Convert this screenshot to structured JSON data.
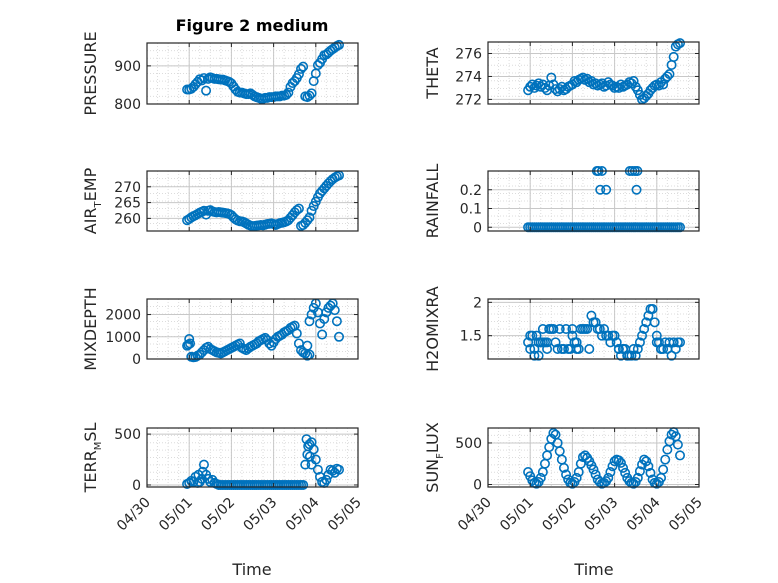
{
  "figure": {
    "title": "Figure 2 medium",
    "xlabel": "Time",
    "x_ticks": [
      "04/30",
      "05/01",
      "05/02",
      "05/03",
      "05/04",
      "05/05"
    ]
  },
  "colors": {
    "marker": "#0072BD",
    "grid": "#dcdcdc",
    "axis": "#262626"
  },
  "chart_data": [
    {
      "type": "scatter",
      "ylabel": "PRESSURE",
      "ylim": [
        800,
        960
      ],
      "yticks": [
        "800",
        "900"
      ],
      "x": [
        0.95,
        1.0,
        1.05,
        1.1,
        1.15,
        1.2,
        1.25,
        1.3,
        1.35,
        1.4,
        1.45,
        1.5,
        1.55,
        1.6,
        1.65,
        1.7,
        1.75,
        1.8,
        1.85,
        1.9,
        1.95,
        2.0,
        2.05,
        2.1,
        2.15,
        2.2,
        2.25,
        2.3,
        2.35,
        2.4,
        2.45,
        2.5,
        2.55,
        2.6,
        2.65,
        2.7,
        2.75,
        2.8,
        2.85,
        2.9,
        2.95,
        3.0,
        3.05,
        3.1,
        3.15,
        3.2,
        3.25,
        3.3,
        3.35,
        3.4,
        3.45,
        3.5,
        3.55,
        3.6,
        3.65,
        3.7,
        3.75,
        3.8,
        3.85,
        3.9,
        3.95,
        4.0,
        4.05,
        4.1,
        4.15,
        4.2,
        4.25,
        4.3,
        4.35,
        4.4,
        4.45,
        4.5,
        4.55
      ],
      "y": [
        838,
        838,
        840,
        845,
        852,
        858,
        865,
        862,
        868,
        835,
        866,
        870,
        868,
        866,
        866,
        865,
        864,
        864,
        862,
        860,
        858,
        854,
        846,
        838,
        832,
        830,
        830,
        828,
        826,
        826,
        828,
        824,
        820,
        818,
        816,
        814,
        814,
        816,
        816,
        818,
        818,
        818,
        820,
        820,
        820,
        822,
        822,
        824,
        830,
        845,
        855,
        860,
        868,
        878,
        892,
        898,
        820,
        818,
        822,
        828,
        860,
        880,
        902,
        908,
        918,
        928,
        930,
        935,
        940,
        944,
        948,
        952,
        955
      ]
    },
    {
      "type": "scatter",
      "ylabel": "THETA",
      "ylim": [
        271.6,
        277
      ],
      "yticks": [
        "272",
        "274",
        "276"
      ],
      "x": [
        0.95,
        1.0,
        1.05,
        1.1,
        1.15,
        1.2,
        1.25,
        1.3,
        1.35,
        1.4,
        1.45,
        1.5,
        1.55,
        1.6,
        1.65,
        1.7,
        1.75,
        1.8,
        1.85,
        1.9,
        1.95,
        2.0,
        2.05,
        2.1,
        2.15,
        2.2,
        2.25,
        2.3,
        2.35,
        2.4,
        2.45,
        2.5,
        2.55,
        2.6,
        2.65,
        2.7,
        2.75,
        2.8,
        2.85,
        2.9,
        2.95,
        3.0,
        3.05,
        3.1,
        3.15,
        3.2,
        3.25,
        3.3,
        3.35,
        3.4,
        3.45,
        3.5,
        3.55,
        3.6,
        3.65,
        3.7,
        3.75,
        3.8,
        3.85,
        3.9,
        3.95,
        4.0,
        4.05,
        4.1,
        4.15,
        4.2,
        4.25,
        4.3,
        4.35,
        4.4,
        4.45,
        4.5,
        4.55
      ],
      "y": [
        272.8,
        273.1,
        273.3,
        273.0,
        273.2,
        273.4,
        273.1,
        273.3,
        273.0,
        272.8,
        273.2,
        273.9,
        273.3,
        272.9,
        272.7,
        272.9,
        273.1,
        272.8,
        272.9,
        273.1,
        273.2,
        273.3,
        273.6,
        273.5,
        273.7,
        273.8,
        273.9,
        273.7,
        273.8,
        273.5,
        273.6,
        273.3,
        273.4,
        273.2,
        273.3,
        273.4,
        273.1,
        273.2,
        273.5,
        273.3,
        273.2,
        273.0,
        273.1,
        273.0,
        273.3,
        273.1,
        273.2,
        273.3,
        273.5,
        273.4,
        273.6,
        273.1,
        272.8,
        272.4,
        272.0,
        272.1,
        272.3,
        272.5,
        272.8,
        273.0,
        273.2,
        273.3,
        273.2,
        273.5,
        273.3,
        273.8,
        274.0,
        274.2,
        275.0,
        275.7,
        276.6,
        276.8,
        276.9
      ]
    },
    {
      "type": "scatter",
      "ylabel": "AIR_TEMP",
      "ylim": [
        256,
        275
      ],
      "yticks": [
        "260",
        "265",
        "270"
      ],
      "x": [
        0.95,
        1.0,
        1.05,
        1.1,
        1.15,
        1.2,
        1.25,
        1.3,
        1.35,
        1.4,
        1.45,
        1.5,
        1.55,
        1.6,
        1.65,
        1.7,
        1.75,
        1.8,
        1.85,
        1.9,
        1.95,
        2.0,
        2.05,
        2.1,
        2.15,
        2.2,
        2.25,
        2.3,
        2.35,
        2.4,
        2.45,
        2.5,
        2.55,
        2.6,
        2.65,
        2.7,
        2.75,
        2.8,
        2.85,
        2.9,
        2.95,
        3.0,
        3.05,
        3.1,
        3.15,
        3.2,
        3.25,
        3.3,
        3.35,
        3.4,
        3.45,
        3.5,
        3.55,
        3.6,
        3.65,
        3.7,
        3.75,
        3.8,
        3.85,
        3.9,
        3.95,
        4.0,
        4.05,
        4.1,
        4.15,
        4.2,
        4.25,
        4.3,
        4.35,
        4.4,
        4.45,
        4.5,
        4.55
      ],
      "y": [
        259.4,
        259.8,
        260.3,
        260.7,
        261.0,
        261.4,
        261.8,
        262.1,
        262.4,
        261.2,
        262.4,
        262.6,
        262.2,
        262.0,
        261.9,
        262.0,
        261.9,
        261.8,
        261.7,
        261.6,
        261.4,
        261.0,
        260.3,
        259.7,
        259.3,
        259.1,
        259.0,
        258.8,
        258.4,
        258.0,
        257.7,
        257.5,
        257.6,
        257.7,
        257.8,
        257.9,
        257.8,
        258.0,
        258.2,
        258.3,
        258.4,
        258.2,
        257.9,
        258.2,
        258.5,
        258.6,
        258.8,
        259.0,
        259.4,
        260.2,
        261.0,
        261.9,
        262.6,
        263.1,
        257.6,
        257.9,
        258.6,
        259.4,
        260.3,
        262.4,
        263.9,
        265.3,
        266.7,
        267.9,
        268.7,
        269.5,
        270.3,
        271.1,
        271.8,
        272.4,
        272.9,
        273.3,
        273.6
      ]
    },
    {
      "type": "scatter",
      "ylabel": "RAINFALL",
      "ylim": [
        -0.02,
        0.3
      ],
      "yticks": [
        "0",
        "0.1",
        "0.2"
      ],
      "x": [
        0.95,
        1.0,
        1.05,
        1.1,
        1.15,
        1.2,
        1.25,
        1.3,
        1.35,
        1.4,
        1.45,
        1.5,
        1.55,
        1.6,
        1.65,
        1.7,
        1.75,
        1.8,
        1.85,
        1.9,
        1.95,
        2.0,
        2.05,
        2.1,
        2.15,
        2.2,
        2.25,
        2.3,
        2.35,
        2.4,
        2.45,
        2.5,
        2.55,
        2.6,
        2.65,
        2.7,
        2.75,
        2.8,
        2.85,
        2.9,
        2.95,
        3.0,
        3.05,
        3.1,
        3.15,
        3.2,
        3.25,
        3.3,
        3.35,
        3.4,
        3.45,
        3.5,
        3.55,
        3.6,
        3.65,
        3.7,
        3.75,
        3.8,
        3.85,
        3.9,
        3.95,
        4.0,
        4.05,
        4.1,
        4.15,
        4.2,
        4.25,
        4.3,
        4.35,
        4.4,
        4.45,
        4.5,
        4.55,
        2.58,
        2.62,
        2.66,
        2.7,
        2.8,
        3.36,
        3.42,
        3.48,
        3.52,
        3.54
      ],
      "y": [
        0,
        0,
        0,
        0,
        0,
        0,
        0,
        0,
        0,
        0,
        0,
        0,
        0,
        0,
        0,
        0,
        0,
        0,
        0,
        0,
        0,
        0,
        0,
        0,
        0,
        0,
        0,
        0,
        0,
        0,
        0,
        0,
        0,
        0,
        0,
        0,
        0,
        0,
        0,
        0,
        0,
        0,
        0,
        0,
        0,
        0,
        0,
        0,
        0,
        0,
        0,
        0,
        0,
        0,
        0,
        0,
        0,
        0,
        0,
        0,
        0,
        0,
        0,
        0,
        0,
        0,
        0,
        0,
        0,
        0,
        0,
        0,
        0,
        0.3,
        0.3,
        0.2,
        0.3,
        0.2,
        0.3,
        0.3,
        0.3,
        0.2,
        0.3
      ]
    },
    {
      "type": "scatter",
      "ylabel": "MIXDEPTH",
      "ylim": [
        0,
        2700
      ],
      "yticks": [
        "0",
        "1000",
        "2000"
      ],
      "x": [
        0.95,
        1.0,
        1.05,
        1.1,
        1.15,
        1.2,
        1.25,
        1.3,
        1.35,
        1.4,
        1.45,
        1.5,
        1.55,
        1.6,
        1.65,
        1.7,
        1.75,
        1.8,
        1.85,
        1.9,
        1.95,
        2.0,
        2.05,
        2.1,
        2.15,
        2.2,
        2.25,
        2.3,
        2.35,
        2.4,
        2.45,
        2.5,
        2.55,
        2.6,
        2.65,
        2.7,
        2.75,
        2.8,
        2.85,
        2.9,
        2.95,
        3.0,
        3.05,
        3.1,
        3.15,
        3.2,
        3.25,
        3.3,
        3.35,
        3.4,
        3.45,
        3.5,
        3.55,
        3.6,
        3.65,
        3.7,
        3.75,
        3.8,
        3.85,
        3.9,
        3.95,
        4.0,
        4.05,
        4.1,
        4.15,
        4.2,
        4.25,
        4.3,
        4.35,
        4.4,
        4.45,
        4.5,
        4.55,
        0.98,
        1.02,
        3.8,
        3.85
      ],
      "y": [
        600,
        900,
        100,
        80,
        90,
        150,
        200,
        300,
        400,
        500,
        550,
        450,
        400,
        350,
        300,
        280,
        250,
        300,
        350,
        400,
        450,
        500,
        550,
        600,
        650,
        700,
        500,
        450,
        400,
        480,
        550,
        600,
        650,
        700,
        800,
        850,
        900,
        950,
        850,
        700,
        600,
        750,
        900,
        1000,
        1050,
        1100,
        1200,
        1250,
        1300,
        1400,
        1450,
        1500,
        1150,
        700,
        400,
        300,
        250,
        150,
        1700,
        2000,
        2300,
        2500,
        2100,
        1600,
        1100,
        1800,
        2100,
        2300,
        2400,
        2500,
        2200,
        1700,
        1000,
        650,
        700,
        600,
        200
      ],
      "y_order_note": ""
    },
    {
      "type": "scatter",
      "ylabel": "H2OMIXRA",
      "ylim": [
        1.15,
        2.05
      ],
      "yticks": [
        "1.5",
        "2"
      ],
      "x": [
        0.95,
        1.0,
        1.05,
        1.1,
        1.15,
        1.2,
        1.25,
        1.3,
        1.35,
        1.4,
        1.45,
        1.5,
        1.55,
        1.6,
        1.65,
        1.7,
        1.75,
        1.8,
        1.85,
        1.9,
        1.95,
        2.0,
        2.05,
        2.1,
        2.15,
        2.2,
        2.25,
        2.3,
        2.35,
        2.4,
        2.45,
        2.5,
        2.55,
        2.6,
        2.65,
        2.7,
        2.75,
        2.8,
        2.85,
        2.9,
        2.95,
        3.0,
        3.05,
        3.1,
        3.15,
        3.2,
        3.25,
        3.3,
        3.35,
        3.4,
        3.45,
        3.5,
        3.55,
        3.6,
        3.65,
        3.7,
        3.75,
        3.8,
        3.85,
        3.9,
        3.95,
        4.0,
        4.05,
        4.1,
        4.15,
        4.2,
        4.25,
        4.3,
        4.35,
        4.4,
        4.45,
        4.5,
        4.55,
        1.0,
        1.1,
        1.2,
        1.3,
        1.4,
        2.0,
        2.1,
        3.1,
        3.2,
        3.3,
        4.0,
        4.1
      ],
      "y": [
        1.4,
        1.5,
        1.5,
        1.3,
        1.5,
        1.4,
        1.4,
        1.6,
        1.4,
        1.4,
        1.6,
        1.6,
        1.6,
        1.4,
        1.3,
        1.6,
        1.3,
        1.3,
        1.6,
        1.3,
        1.3,
        1.6,
        1.4,
        1.3,
        1.3,
        1.6,
        1.6,
        1.6,
        1.6,
        1.3,
        1.8,
        1.7,
        1.7,
        1.6,
        1.6,
        1.5,
        1.6,
        1.5,
        1.5,
        1.4,
        1.5,
        1.5,
        1.4,
        1.3,
        1.2,
        1.3,
        1.3,
        1.2,
        1.2,
        1.2,
        1.3,
        1.2,
        1.3,
        1.4,
        1.5,
        1.6,
        1.7,
        1.8,
        1.9,
        1.9,
        1.7,
        1.5,
        1.4,
        1.3,
        1.3,
        1.4,
        1.3,
        1.4,
        1.2,
        1.4,
        1.3,
        1.4,
        1.4,
        1.3,
        1.2,
        1.2,
        1.4,
        1.3,
        1.5,
        1.4,
        1.3,
        1.3,
        1.2,
        1.4,
        1.3
      ]
    },
    {
      "type": "scatter",
      "ylabel": "TERR_MSL",
      "ylim": [
        -20,
        560
      ],
      "yticks": [
        "0",
        "500"
      ],
      "x": [
        0.95,
        1.0,
        1.05,
        1.1,
        1.15,
        1.2,
        1.25,
        1.3,
        1.35,
        1.4,
        1.45,
        1.5,
        1.55,
        1.6,
        1.65,
        1.7,
        1.75,
        1.8,
        1.85,
        1.9,
        1.95,
        2.0,
        2.05,
        2.1,
        2.15,
        2.2,
        2.25,
        2.3,
        2.35,
        2.4,
        2.45,
        2.5,
        2.55,
        2.6,
        2.65,
        2.7,
        2.75,
        2.8,
        2.85,
        2.9,
        2.95,
        3.0,
        3.05,
        3.1,
        3.15,
        3.2,
        3.25,
        3.3,
        3.35,
        3.4,
        3.45,
        3.5,
        3.55,
        3.6,
        3.65,
        3.7,
        3.75,
        3.8,
        3.85,
        3.9,
        3.95,
        4.0,
        4.05,
        4.1,
        4.15,
        4.2,
        4.25,
        4.3,
        4.35,
        4.4,
        4.45,
        4.5,
        4.55,
        1.32,
        1.22,
        3.78,
        3.82,
        3.86,
        3.9
      ],
      "y": [
        10,
        20,
        40,
        30,
        80,
        20,
        30,
        60,
        200,
        100,
        60,
        30,
        50,
        20,
        10,
        0,
        0,
        0,
        0,
        0,
        0,
        0,
        0,
        0,
        0,
        0,
        0,
        0,
        0,
        0,
        0,
        0,
        0,
        0,
        0,
        0,
        0,
        0,
        0,
        0,
        0,
        0,
        0,
        0,
        0,
        0,
        0,
        0,
        0,
        0,
        0,
        0,
        0,
        0,
        0,
        0,
        200,
        300,
        400,
        420,
        350,
        250,
        150,
        80,
        30,
        20,
        50,
        100,
        150,
        140,
        120,
        160,
        150,
        130,
        100,
        450,
        380,
        280,
        200
      ]
    },
    {
      "type": "scatter",
      "ylabel": "SUN_FLUX",
      "ylim": [
        -30,
        680
      ],
      "yticks": [
        "0",
        "500"
      ],
      "x": [
        0.95,
        1.0,
        1.05,
        1.1,
        1.15,
        1.2,
        1.25,
        1.3,
        1.35,
        1.4,
        1.45,
        1.5,
        1.55,
        1.6,
        1.65,
        1.7,
        1.75,
        1.8,
        1.85,
        1.9,
        1.95,
        2.0,
        2.05,
        2.1,
        2.15,
        2.2,
        2.25,
        2.3,
        2.35,
        2.4,
        2.45,
        2.5,
        2.55,
        2.6,
        2.65,
        2.7,
        2.75,
        2.8,
        2.85,
        2.9,
        2.95,
        3.0,
        3.05,
        3.1,
        3.15,
        3.2,
        3.25,
        3.3,
        3.35,
        3.4,
        3.45,
        3.5,
        3.55,
        3.6,
        3.65,
        3.7,
        3.75,
        3.8,
        3.85,
        3.9,
        3.95,
        4.0,
        4.05,
        4.1,
        4.15,
        4.2,
        4.25,
        4.3,
        4.35,
        4.4,
        4.45,
        4.5,
        4.55
      ],
      "y": [
        150,
        100,
        50,
        20,
        10,
        30,
        80,
        150,
        250,
        350,
        450,
        550,
        620,
        600,
        500,
        400,
        300,
        200,
        120,
        60,
        20,
        10,
        30,
        80,
        150,
        250,
        330,
        350,
        320,
        280,
        230,
        180,
        120,
        60,
        30,
        10,
        20,
        40,
        80,
        150,
        220,
        280,
        300,
        290,
        260,
        200,
        140,
        80,
        40,
        20,
        10,
        30,
        80,
        160,
        240,
        300,
        280,
        220,
        140,
        60,
        20,
        10,
        30,
        80,
        180,
        300,
        420,
        520,
        600,
        630,
        580,
        480,
        350
      ]
    }
  ]
}
